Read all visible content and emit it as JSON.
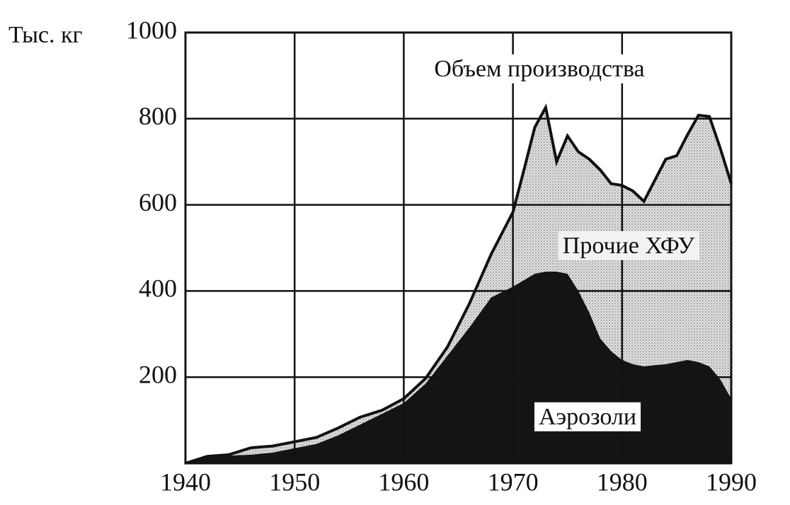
{
  "chart_data": {
    "type": "area",
    "stacked": true,
    "y_label": "Тыс. кг",
    "annotation": "Объем производства",
    "x": [
      1940,
      1942,
      1944,
      1946,
      1948,
      1950,
      1952,
      1954,
      1956,
      1958,
      1960,
      1962,
      1964,
      1966,
      1968,
      1970,
      1971,
      1972,
      1973,
      1974,
      1975,
      1976,
      1977,
      1978,
      1979,
      1980,
      1981,
      1982,
      1983,
      1984,
      1985,
      1986,
      1987,
      1988,
      1989,
      1990
    ],
    "series": [
      {
        "name": "Аэрозоли",
        "color": "#141414",
        "values": [
          0,
          15,
          18,
          20,
          25,
          35,
          45,
          65,
          90,
          115,
          140,
          185,
          250,
          315,
          385,
          410,
          425,
          440,
          445,
          445,
          440,
          400,
          350,
          290,
          260,
          240,
          230,
          225,
          228,
          230,
          235,
          240,
          235,
          225,
          195,
          150
        ]
      },
      {
        "name": "Прочие ХФУ",
        "color": "#d4d4d4",
        "values": [
          0,
          1,
          2,
          16,
          15,
          15,
          15,
          17,
          17,
          8,
          10,
          12,
          20,
          55,
          100,
          173,
          255,
          340,
          381,
          255,
          320,
          323,
          356,
          391,
          389,
          405,
          402,
          383,
          429,
          476,
          479,
          523,
          573,
          580,
          536,
          499
        ]
      }
    ],
    "xlim": [
      1940,
      1990
    ],
    "xticks": [
      1940,
      1950,
      1960,
      1970,
      1980,
      1990
    ],
    "ylim": [
      0,
      1000
    ],
    "yticks": [
      200,
      400,
      600,
      800,
      1000
    ],
    "grid": true
  }
}
